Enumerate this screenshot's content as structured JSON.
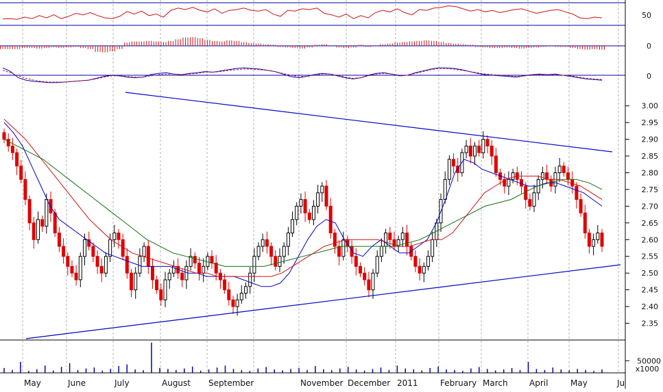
{
  "chart_data": [
    {
      "type": "line",
      "indicator": "oscillator (0-100)",
      "y_ticks": [
        {
          "value": 50,
          "label": "50"
        }
      ],
      "reference_lines": [
        70,
        30
      ],
      "color": "#d01010",
      "ylim": [
        0,
        100
      ],
      "series": [
        {
          "values": [
            35,
            36,
            34,
            40,
            36,
            44,
            38,
            46,
            36,
            42,
            50,
            46,
            52,
            44,
            38,
            36,
            42,
            55,
            48,
            56,
            44,
            48,
            40,
            58,
            64,
            60,
            66,
            58,
            54,
            62,
            50,
            58,
            60,
            64,
            58,
            56,
            60,
            48,
            42,
            58,
            56,
            62,
            60,
            64,
            50,
            46,
            40,
            48,
            36,
            44,
            38,
            52,
            58,
            54,
            62,
            52,
            46,
            60,
            58,
            64,
            66,
            70,
            68,
            62,
            56,
            60,
            54,
            58,
            52,
            56,
            60,
            62,
            56,
            50,
            54,
            58,
            60,
            54,
            48,
            38,
            36,
            40,
            38
          ]
        }
      ]
    },
    {
      "type": "bar",
      "indicator": "histogram",
      "y_ticks": [
        {
          "value": 0,
          "label": "0"
        }
      ],
      "color": "#d01010",
      "ylim": [
        -1,
        1
      ],
      "series": [
        {
          "values": [
            -0.3,
            -0.3,
            -0.3,
            -0.2,
            -0.2,
            -0.25,
            -0.2,
            -0.15,
            -0.2,
            -0.15,
            -0.1,
            -0.2,
            -0.3,
            -0.55,
            -0.6,
            -0.5,
            -0.3,
            0.3,
            0.4,
            0.4,
            0.45,
            0.4,
            0.35,
            0.45,
            0.6,
            0.75,
            0.8,
            0.7,
            0.55,
            0.45,
            0.4,
            0.5,
            0.45,
            0.35,
            0.25,
            0.2,
            0.15,
            0.1,
            -0.1,
            -0.15,
            -0.2,
            -0.25,
            -0.15,
            0.1,
            0.15,
            0.05,
            -0.15,
            -0.2,
            -0.15,
            0.1,
            -0.1,
            0.05,
            0.15,
            0.2,
            0.3,
            0.35,
            0.4,
            0.45,
            0.5,
            0.45,
            0.35,
            0.25,
            0.2,
            0.15,
            0.1,
            -0.1,
            -0.15,
            -0.2,
            -0.2,
            -0.15,
            -0.2,
            -0.25,
            -0.2,
            -0.15,
            -0.1,
            -0.05,
            -0.1,
            -0.1,
            -0.2,
            -0.3,
            -0.35,
            -0.3,
            -0.35
          ]
        }
      ]
    },
    {
      "type": "line",
      "indicator": "MACD and signal",
      "y_ticks": [
        {
          "value": 0,
          "label": "0"
        }
      ],
      "ylim": [
        -1,
        1
      ],
      "series": [
        {
          "color": "#0000cc",
          "values": [
            0.6,
            0.3,
            -0.2,
            -0.4,
            -0.5,
            -0.55,
            -0.6,
            -0.6,
            -0.55,
            -0.5,
            -0.45,
            -0.4,
            -0.25,
            -0.1,
            0.0,
            -0.05,
            -0.15,
            -0.2,
            -0.15,
            0.05,
            0.15,
            0.2,
            0.1,
            0.05,
            0.15,
            0.2,
            0.3,
            0.25,
            0.35,
            0.45,
            0.55,
            0.6,
            0.55,
            0.5,
            0.4,
            0.3,
            0.1,
            -0.1,
            -0.2,
            -0.1,
            0.05,
            0.15,
            0.1,
            -0.05,
            -0.2,
            -0.3,
            -0.2,
            0.0,
            0.15,
            0.2,
            0.1,
            -0.05,
            0.0,
            0.2,
            0.35,
            0.5,
            0.6,
            0.6,
            0.55,
            0.45,
            0.3,
            0.15,
            0.05,
            0.0,
            -0.05,
            -0.1,
            -0.15,
            -0.05,
            0.05,
            0.1,
            0.05,
            0.1,
            0.0,
            -0.1,
            -0.2,
            -0.3,
            -0.35,
            -0.4
          ]
        },
        {
          "color": "#d01010",
          "dashed": true,
          "values": [
            0.4,
            0.2,
            -0.05,
            -0.25,
            -0.4,
            -0.5,
            -0.55,
            -0.55,
            -0.55,
            -0.5,
            -0.45,
            -0.4,
            -0.3,
            -0.15,
            -0.05,
            -0.05,
            -0.1,
            -0.15,
            -0.15,
            -0.05,
            0.05,
            0.1,
            0.1,
            0.05,
            0.1,
            0.15,
            0.25,
            0.25,
            0.3,
            0.4,
            0.45,
            0.5,
            0.5,
            0.45,
            0.4,
            0.3,
            0.15,
            0.0,
            -0.1,
            -0.1,
            0.0,
            0.1,
            0.1,
            0.0,
            -0.15,
            -0.25,
            -0.2,
            -0.05,
            0.1,
            0.15,
            0.1,
            0.0,
            0.0,
            0.15,
            0.3,
            0.45,
            0.55,
            0.55,
            0.5,
            0.4,
            0.3,
            0.2,
            0.1,
            0.05,
            0.0,
            -0.05,
            -0.1,
            -0.05,
            0.0,
            0.05,
            0.05,
            0.05,
            0.0,
            -0.05,
            -0.15,
            -0.25,
            -0.3,
            -0.35
          ]
        }
      ]
    },
    {
      "type": "candlestick",
      "ylim": [
        2.3,
        3.03
      ],
      "y_ticks": [
        "2.35",
        "2.40",
        "2.45",
        "2.50",
        "2.55",
        "2.60",
        "2.65",
        "2.70",
        "2.75",
        "2.80",
        "2.85",
        "2.90",
        "2.95",
        "3.00"
      ],
      "closes": [
        2.9,
        2.88,
        2.86,
        2.82,
        2.78,
        2.72,
        2.65,
        2.6,
        2.66,
        2.64,
        2.72,
        2.68,
        2.62,
        2.58,
        2.55,
        2.52,
        2.5,
        2.48,
        2.55,
        2.6,
        2.58,
        2.55,
        2.52,
        2.5,
        2.55,
        2.6,
        2.62,
        2.6,
        2.55,
        2.5,
        2.45,
        2.5,
        2.55,
        2.58,
        2.52,
        2.48,
        2.45,
        2.42,
        2.48,
        2.5,
        2.52,
        2.5,
        2.48,
        2.52,
        2.55,
        2.53,
        2.5,
        2.52,
        2.55,
        2.53,
        2.5,
        2.48,
        2.45,
        2.42,
        2.4,
        2.42,
        2.44,
        2.46,
        2.5,
        2.55,
        2.58,
        2.6,
        2.58,
        2.55,
        2.52,
        2.55,
        2.58,
        2.62,
        2.66,
        2.7,
        2.72,
        2.68,
        2.66,
        2.7,
        2.74,
        2.76,
        2.7,
        2.62,
        2.58,
        2.55,
        2.6,
        2.58,
        2.55,
        2.52,
        2.5,
        2.48,
        2.45,
        2.5,
        2.55,
        2.58,
        2.62,
        2.6,
        2.58,
        2.6,
        2.62,
        2.58,
        2.55,
        2.52,
        2.5,
        2.52,
        2.55,
        2.6,
        2.65,
        2.72,
        2.78,
        2.84,
        2.82,
        2.8,
        2.86,
        2.88,
        2.85,
        2.88,
        2.86,
        2.9,
        2.88,
        2.85,
        2.8,
        2.78,
        2.76,
        2.78,
        2.8,
        2.78,
        2.76,
        2.72,
        2.7,
        2.74,
        2.78,
        2.8,
        2.78,
        2.76,
        2.8,
        2.82,
        2.8,
        2.78,
        2.76,
        2.72,
        2.68,
        2.62,
        2.58,
        2.6,
        2.62,
        2.58
      ],
      "moving_averages": [
        {
          "color": "#0000cc",
          "values": [
            2.95,
            2.92,
            2.88,
            2.82,
            2.76,
            2.7,
            2.66,
            2.64,
            2.62,
            2.6,
            2.58,
            2.56,
            2.55,
            2.54,
            2.53,
            2.52,
            2.52,
            2.52,
            2.52,
            2.51,
            2.5,
            2.5,
            2.49,
            2.49,
            2.49,
            2.49,
            2.48,
            2.47,
            2.46,
            2.46,
            2.47,
            2.5,
            2.55,
            2.6,
            2.64,
            2.66,
            2.65,
            2.6,
            2.56,
            2.55,
            2.58,
            2.6,
            2.58,
            2.56,
            2.56,
            2.58,
            2.6,
            2.65,
            2.72,
            2.8,
            2.84,
            2.83,
            2.81,
            2.8,
            2.79,
            2.78,
            2.77,
            2.76,
            2.76,
            2.77,
            2.77,
            2.76,
            2.75,
            2.74,
            2.72,
            2.7
          ]
        },
        {
          "color": "#d01010",
          "values": [
            2.96,
            2.93,
            2.9,
            2.86,
            2.82,
            2.78,
            2.74,
            2.7,
            2.66,
            2.63,
            2.6,
            2.58,
            2.56,
            2.55,
            2.54,
            2.53,
            2.52,
            2.51,
            2.5,
            2.5,
            2.49,
            2.49,
            2.49,
            2.49,
            2.49,
            2.49,
            2.5,
            2.52,
            2.54,
            2.56,
            2.58,
            2.59,
            2.6,
            2.6,
            2.6,
            2.6,
            2.59,
            2.58,
            2.58,
            2.59,
            2.6,
            2.6,
            2.62,
            2.66,
            2.7,
            2.74,
            2.76,
            2.78,
            2.79,
            2.79,
            2.79,
            2.78,
            2.78,
            2.77,
            2.76,
            2.74,
            2.72
          ]
        },
        {
          "color": "#107010",
          "values": [
            2.9,
            2.88,
            2.86,
            2.84,
            2.81,
            2.78,
            2.75,
            2.72,
            2.69,
            2.66,
            2.63,
            2.6,
            2.58,
            2.56,
            2.55,
            2.54,
            2.53,
            2.52,
            2.52,
            2.52,
            2.52,
            2.53,
            2.54,
            2.55,
            2.56,
            2.57,
            2.58,
            2.58,
            2.58,
            2.58,
            2.58,
            2.59,
            2.6,
            2.62,
            2.64,
            2.66,
            2.68,
            2.7,
            2.71,
            2.72,
            2.74,
            2.76,
            2.77,
            2.78,
            2.78,
            2.77,
            2.75
          ]
        }
      ],
      "trendlines": [
        {
          "color": "#0000cc",
          "from": [
            "2010-06",
            "2.95"
          ],
          "to": [
            "2011-06",
            "2.86"
          ]
        },
        {
          "color": "#0000cc",
          "from": [
            "2010-04",
            "2.32"
          ],
          "to": [
            "2011-06",
            "2.53"
          ]
        }
      ]
    },
    {
      "type": "bar",
      "indicator": "volume",
      "ylabel": "x1000",
      "y_ticks": [
        {
          "value": 50000,
          "label": "50000"
        }
      ],
      "color": "#0000aa",
      "ylim": [
        0,
        130000
      ],
      "values": [
        20000,
        12000,
        45000,
        8000,
        15000,
        30000,
        10000,
        25000,
        40000,
        12000,
        18000,
        22000,
        9000,
        16000,
        28000,
        35000,
        14000,
        11000,
        125000,
        20000,
        16000,
        12000,
        18000,
        26000,
        9000,
        14000,
        22000,
        30000,
        16000,
        12000,
        8000,
        18000,
        24000,
        14000,
        10000,
        16000,
        20000,
        12000,
        28000,
        15000,
        11000,
        18000,
        25000,
        14000,
        9000,
        16000,
        22000,
        12000,
        30000,
        18000,
        15000,
        10000,
        20000,
        26000,
        14000,
        12000,
        8000,
        18000,
        24000,
        16000,
        10000,
        14000,
        20000,
        12000,
        45000,
        16000,
        12000,
        22000,
        14000,
        10000,
        16000,
        12000,
        8000,
        14000
      ]
    }
  ],
  "x_axis": {
    "months": [
      "May",
      "June",
      "July",
      "August",
      "September",
      "November",
      "December",
      "2011",
      "February",
      "March",
      "April",
      "May",
      "Ju"
    ]
  }
}
